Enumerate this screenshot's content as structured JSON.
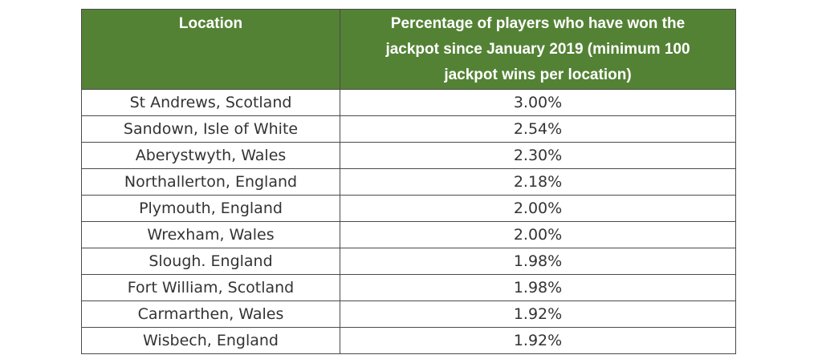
{
  "table": {
    "headers": {
      "location": "Location",
      "percentage": "Percentage of players who have won the jackpot since January 2019 (minimum 100 jackpot wins per location)"
    },
    "rows": [
      {
        "location": "St Andrews, Scotland",
        "percentage": "3.00%"
      },
      {
        "location": "Sandown, Isle of White",
        "percentage": "2.54%"
      },
      {
        "location": "Aberystwyth, Wales",
        "percentage": "2.30%"
      },
      {
        "location": "Northallerton, England",
        "percentage": "2.18%"
      },
      {
        "location": "Plymouth, England",
        "percentage": "2.00%"
      },
      {
        "location": "Wrexham, Wales",
        "percentage": "2.00%"
      },
      {
        "location": "Slough. England",
        "percentage": "1.98%"
      },
      {
        "location": "Fort William, Scotland",
        "percentage": "1.98%"
      },
      {
        "location": "Carmarthen, Wales",
        "percentage": "1.92%"
      },
      {
        "location": "Wisbech, England",
        "percentage": "1.92%"
      }
    ]
  },
  "colors": {
    "header_background": "#548235",
    "header_text": "#ffffff",
    "border": "#4a4a4a"
  }
}
